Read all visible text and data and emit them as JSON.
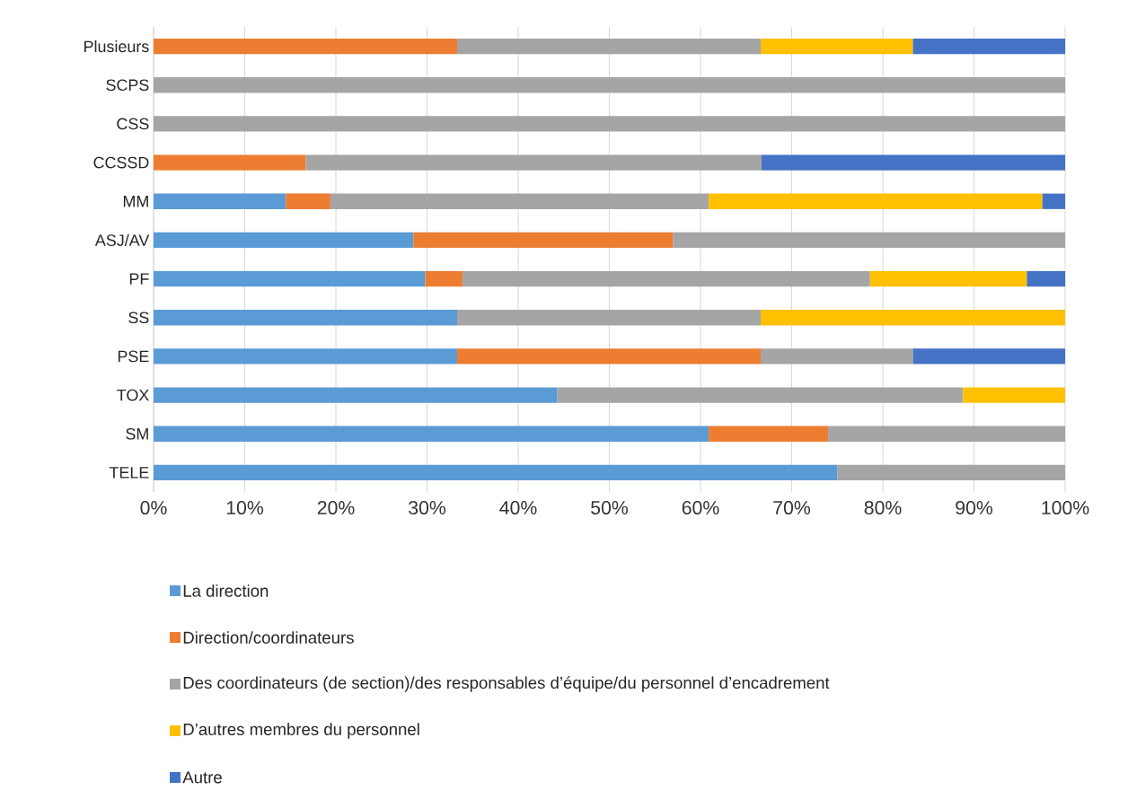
{
  "chart_data": {
    "type": "bar",
    "orientation": "horizontal",
    "stacked": true,
    "grid": "x",
    "legend": "bottom",
    "categories": [
      "Plusieurs",
      "SCPS",
      "CSS",
      "CCSSD",
      "MM",
      "ASJ/AV",
      "PF",
      "SS",
      "PSE",
      "TOX",
      "SM",
      "TELE"
    ],
    "xlim": [
      0,
      100
    ],
    "xticks": [
      {
        "value": 0,
        "label": "0%"
      },
      {
        "value": 10,
        "label": "10%"
      },
      {
        "value": 20,
        "label": "20%"
      },
      {
        "value": 30,
        "label": "30%"
      },
      {
        "value": 40,
        "label": "40%"
      },
      {
        "value": 50,
        "label": "50%"
      },
      {
        "value": 60,
        "label": "60%"
      },
      {
        "value": 70,
        "label": "70%"
      },
      {
        "value": 80,
        "label": "80%"
      },
      {
        "value": 90,
        "label": "90%"
      },
      {
        "value": 100,
        "label": "100%"
      }
    ],
    "series": [
      {
        "name": "La direction",
        "color": "#5b9bd5",
        "values": [
          null,
          null,
          null,
          null,
          14.5,
          28.5,
          29.8,
          33.3,
          33.3,
          44.3,
          60.9,
          75
        ]
      },
      {
        "name": "Direction/coordinateurs",
        "color": "#ed7d31",
        "values": [
          33.3,
          null,
          null,
          16.7,
          4.9,
          28.5,
          4.1,
          null,
          33.3,
          null,
          13.1,
          null
        ]
      },
      {
        "name": "Des coordinateurs (de section)/des responsables d’équipe/du personnel d’encadrement",
        "color": "#a5a5a5",
        "values": [
          33.3,
          100,
          100,
          50,
          41.5,
          43,
          44.7,
          33.3,
          16.7,
          44.5,
          26,
          25
        ]
      },
      {
        "name": "D’autres membres du personnel",
        "color": "#ffc000",
        "values": [
          16.7,
          null,
          null,
          null,
          36.6,
          null,
          17.2,
          33.4,
          null,
          11.2,
          null,
          null
        ]
      },
      {
        "name": "Autre",
        "color": "#4472c4",
        "values": [
          16.7,
          null,
          null,
          33.3,
          2.5,
          null,
          4.2,
          null,
          16.7,
          null,
          null,
          null
        ]
      }
    ]
  }
}
